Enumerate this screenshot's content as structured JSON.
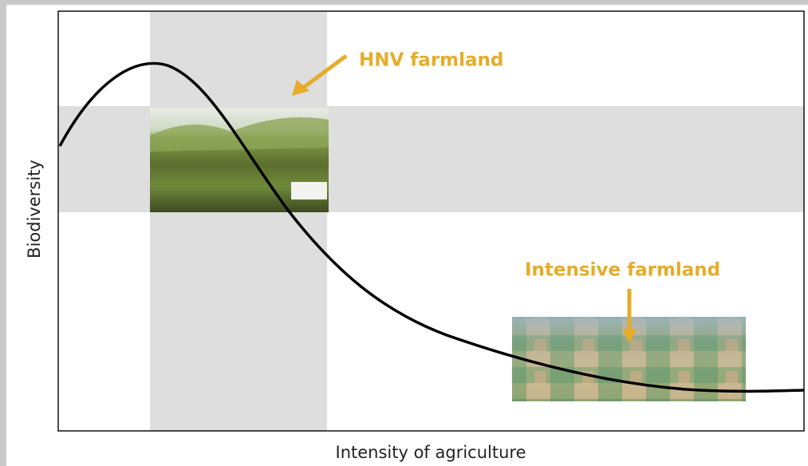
{
  "labels": {
    "hnv": "HNV farmland",
    "intensive": "Intensive farmland"
  },
  "axes": {
    "y": "Biodiversity",
    "x": "Intensity of agriculture"
  }
}
